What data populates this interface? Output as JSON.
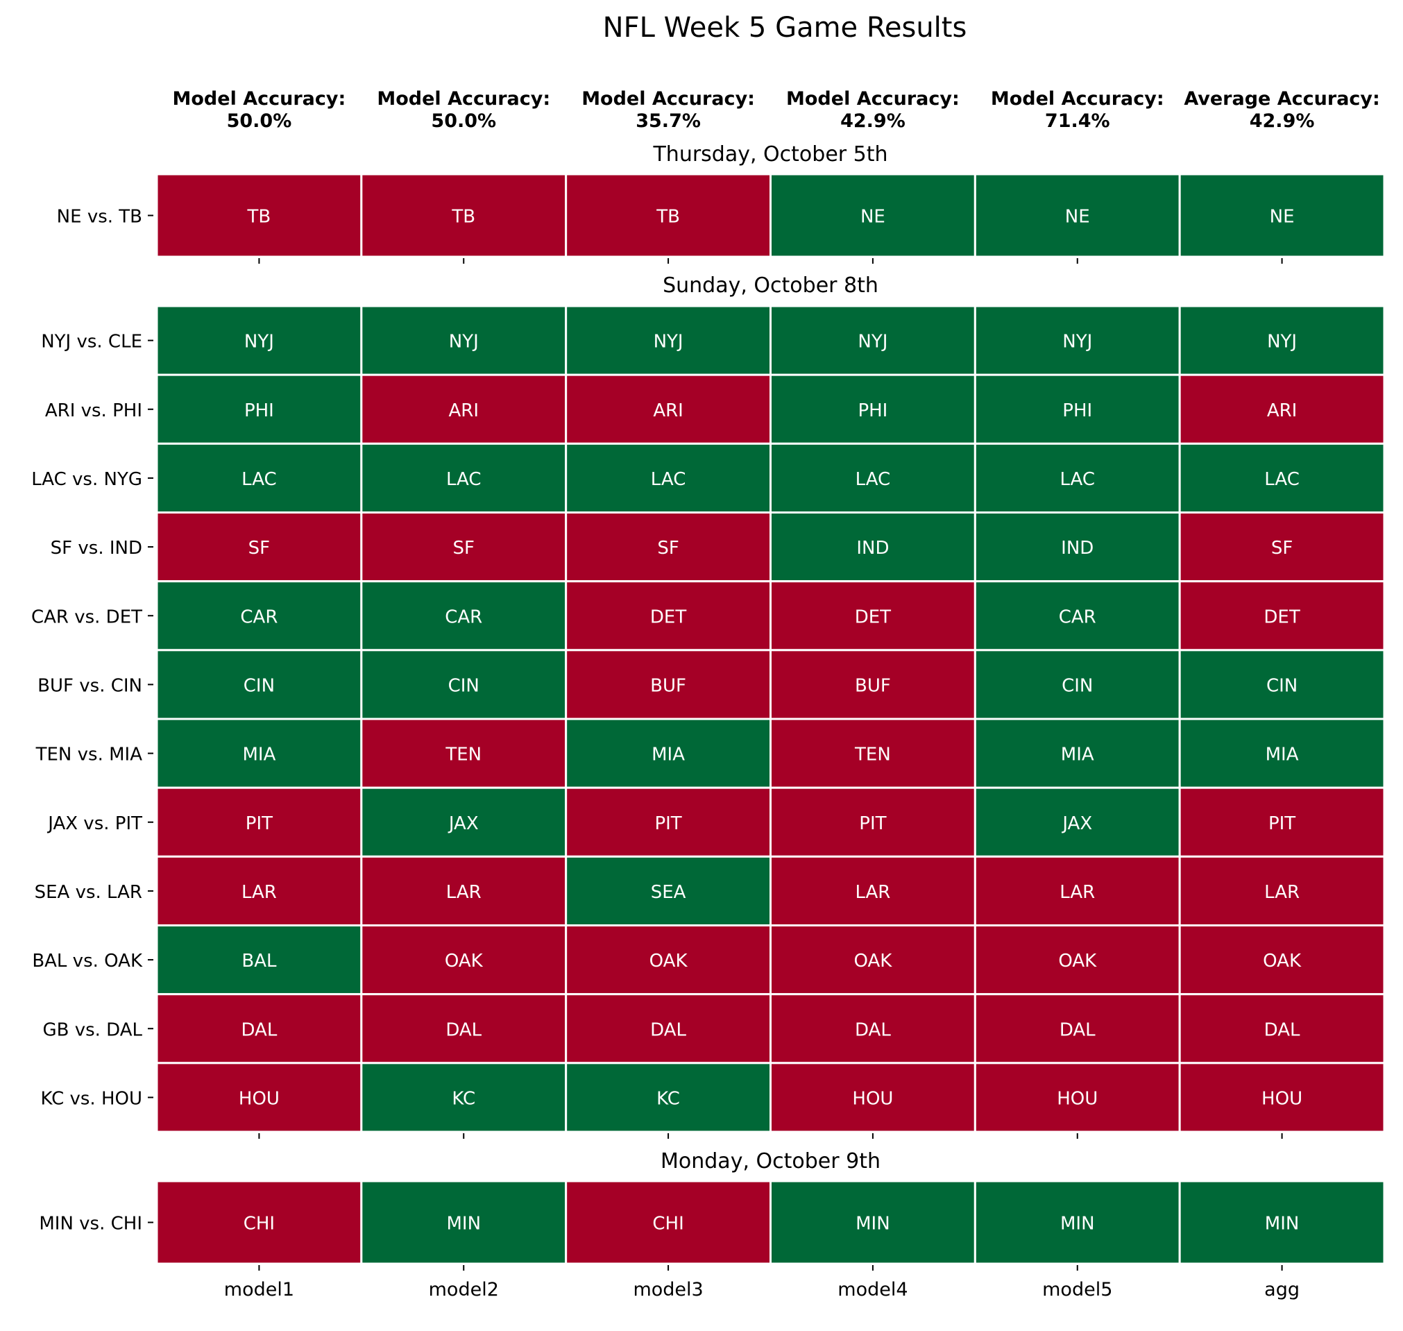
{
  "chart_data": {
    "type": "heatmap",
    "title": "NFL Week 5 Game Results",
    "columns": [
      "model1",
      "model2",
      "model3",
      "model4",
      "model5",
      "agg"
    ],
    "accuracy_headers": [
      {
        "label": "Model Accuracy:",
        "value": "50.0%"
      },
      {
        "label": "Model Accuracy:",
        "value": "50.0%"
      },
      {
        "label": "Model Accuracy:",
        "value": "35.7%"
      },
      {
        "label": "Model Accuracy:",
        "value": "42.9%"
      },
      {
        "label": "Model Accuracy:",
        "value": "71.4%"
      },
      {
        "label": "Average Accuracy:",
        "value": "42.9%"
      }
    ],
    "colors": {
      "correct": "#006837",
      "incorrect": "#a50026",
      "cell_text": "#ffffff",
      "grid": "#ffffff"
    },
    "sections": [
      {
        "title": "Thursday, October 5th",
        "games": [
          {
            "game": "NE vs. TB",
            "picks": [
              "TB",
              "TB",
              "TB",
              "NE",
              "NE",
              "NE"
            ],
            "correct": [
              0,
              0,
              0,
              1,
              1,
              1
            ]
          }
        ]
      },
      {
        "title": "Sunday, October 8th",
        "games": [
          {
            "game": "NYJ vs. CLE",
            "picks": [
              "NYJ",
              "NYJ",
              "NYJ",
              "NYJ",
              "NYJ",
              "NYJ"
            ],
            "correct": [
              1,
              1,
              1,
              1,
              1,
              1
            ]
          },
          {
            "game": "ARI vs. PHI",
            "picks": [
              "PHI",
              "ARI",
              "ARI",
              "PHI",
              "PHI",
              "ARI"
            ],
            "correct": [
              1,
              0,
              0,
              1,
              1,
              0
            ]
          },
          {
            "game": "LAC vs. NYG",
            "picks": [
              "LAC",
              "LAC",
              "LAC",
              "LAC",
              "LAC",
              "LAC"
            ],
            "correct": [
              1,
              1,
              1,
              1,
              1,
              1
            ]
          },
          {
            "game": "SF vs. IND",
            "picks": [
              "SF",
              "SF",
              "SF",
              "IND",
              "IND",
              "SF"
            ],
            "correct": [
              0,
              0,
              0,
              1,
              1,
              0
            ]
          },
          {
            "game": "CAR vs. DET",
            "picks": [
              "CAR",
              "CAR",
              "DET",
              "DET",
              "CAR",
              "DET"
            ],
            "correct": [
              1,
              1,
              0,
              0,
              1,
              0
            ]
          },
          {
            "game": "BUF vs. CIN",
            "picks": [
              "CIN",
              "CIN",
              "BUF",
              "BUF",
              "CIN",
              "CIN"
            ],
            "correct": [
              1,
              1,
              0,
              0,
              1,
              1
            ]
          },
          {
            "game": "TEN vs. MIA",
            "picks": [
              "MIA",
              "TEN",
              "MIA",
              "TEN",
              "MIA",
              "MIA"
            ],
            "correct": [
              1,
              0,
              1,
              0,
              1,
              1
            ]
          },
          {
            "game": "JAX vs. PIT",
            "picks": [
              "PIT",
              "JAX",
              "PIT",
              "PIT",
              "JAX",
              "PIT"
            ],
            "correct": [
              0,
              1,
              0,
              0,
              1,
              0
            ]
          },
          {
            "game": "SEA vs. LAR",
            "picks": [
              "LAR",
              "LAR",
              "SEA",
              "LAR",
              "LAR",
              "LAR"
            ],
            "correct": [
              0,
              0,
              1,
              0,
              0,
              0
            ]
          },
          {
            "game": "BAL vs. OAK",
            "picks": [
              "BAL",
              "OAK",
              "OAK",
              "OAK",
              "OAK",
              "OAK"
            ],
            "correct": [
              1,
              0,
              0,
              0,
              0,
              0
            ]
          },
          {
            "game": "GB vs. DAL",
            "picks": [
              "DAL",
              "DAL",
              "DAL",
              "DAL",
              "DAL",
              "DAL"
            ],
            "correct": [
              0,
              0,
              0,
              0,
              0,
              0
            ]
          },
          {
            "game": "KC vs. HOU",
            "picks": [
              "HOU",
              "KC",
              "KC",
              "HOU",
              "HOU",
              "HOU"
            ],
            "correct": [
              0,
              1,
              1,
              0,
              0,
              0
            ]
          }
        ]
      },
      {
        "title": "Monday, October 9th",
        "games": [
          {
            "game": "MIN vs. CHI",
            "picks": [
              "CHI",
              "MIN",
              "CHI",
              "MIN",
              "MIN",
              "MIN"
            ],
            "correct": [
              0,
              1,
              0,
              1,
              1,
              1
            ]
          }
        ]
      }
    ]
  }
}
